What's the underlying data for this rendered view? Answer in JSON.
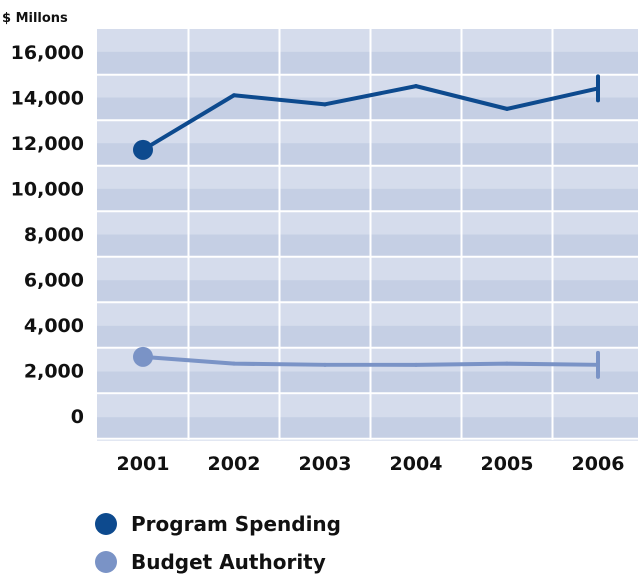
{
  "chart_data": {
    "type": "line",
    "title": "",
    "unit_label": "$ Millons",
    "xlabel": "",
    "ylabel": "",
    "categories": [
      "2001",
      "2002",
      "2003",
      "2004",
      "2005",
      "2006"
    ],
    "y_ticks": [
      "0",
      "2,000",
      "4,000",
      "6,000",
      "8,000",
      "10,000",
      "12,000",
      "14,000",
      "16,000"
    ],
    "ylim": [
      0,
      16000
    ],
    "grid": true,
    "background_bands": [
      "#d5dcec",
      "#c5cfe4"
    ],
    "series": [
      {
        "name": "Program Spending",
        "color": "#0d4a8e",
        "values": [
          11700,
          14100,
          13700,
          14500,
          13500,
          14400
        ]
      },
      {
        "name": "Budget Authority",
        "color": "#7a93c6",
        "values": [
          2600,
          2300,
          2250,
          2250,
          2300,
          2250
        ]
      }
    ],
    "legend_position": "bottom"
  },
  "legend": [
    {
      "label": "Program Spending",
      "color": "#0d4a8e"
    },
    {
      "label": "Budget Authority",
      "color": "#7a93c6"
    }
  ]
}
